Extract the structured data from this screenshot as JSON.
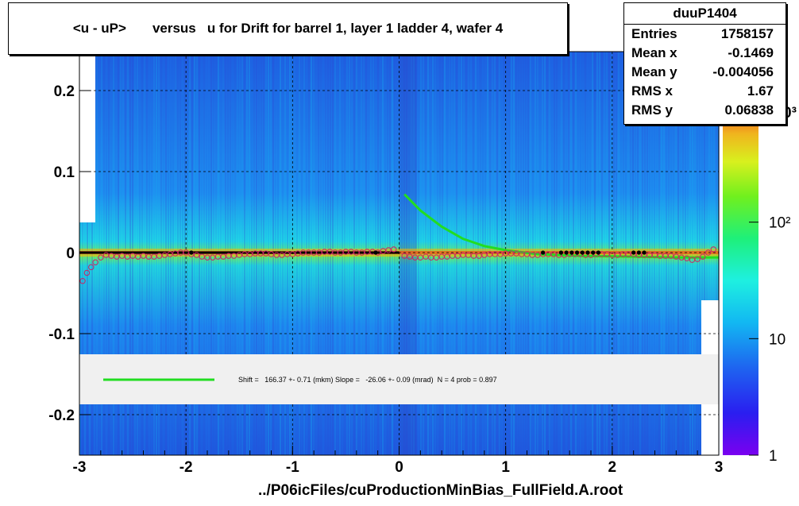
{
  "title": "<u - uP>       versus   u for Drift for barrel 1, layer 1 ladder 4, wafer 4",
  "stats": {
    "name": "duuP1404",
    "rows": [
      {
        "key": "Entries",
        "value": "1758157"
      },
      {
        "key": "Mean x",
        "value": "-0.1469"
      },
      {
        "key": "Mean y",
        "value": "-0.004056"
      },
      {
        "key": "RMS x",
        "value": "1.67"
      },
      {
        "key": "RMS y",
        "value": "0.06838"
      }
    ]
  },
  "fit_legend": "Shift =   166.37 +- 0.71 (mkm) Slope =   -26.06 +- 0.09 (mrad)  N = 4 prob = 0.897",
  "colors": {
    "fit_line": "#22dd22",
    "profile_marker": "#cc2266",
    "mean_line": "#000000"
  },
  "chart_data": {
    "type": "heatmap",
    "xlabel": "../P06icFiles/cuProductionMinBias_FullField.A.root",
    "ylabel": "",
    "xlim": [
      -3,
      3
    ],
    "ylim": [
      -0.25,
      0.25
    ],
    "x_ticks": [
      {
        "value": -3,
        "label": "-3"
      },
      {
        "value": -2,
        "label": "-2"
      },
      {
        "value": -1,
        "label": "-1"
      },
      {
        "value": 0,
        "label": "0"
      },
      {
        "value": 1,
        "label": "1"
      },
      {
        "value": 2,
        "label": "2"
      },
      {
        "value": 3,
        "label": "3"
      }
    ],
    "y_ticks": [
      {
        "value": 0.2,
        "label": "0.2"
      },
      {
        "value": 0.1,
        "label": "0.1"
      },
      {
        "value": 0,
        "label": "0"
      },
      {
        "value": -0.1,
        "label": "-0.1"
      },
      {
        "value": -0.2,
        "label": "-0.2"
      }
    ],
    "z_scale": "log",
    "z_ticks": [
      {
        "value": 1,
        "label": "1"
      },
      {
        "value": 10,
        "label": "10"
      },
      {
        "value": 100,
        "label": "10²"
      }
    ],
    "z_range": [
      1,
      1000
    ],
    "z_top_label_fragment": "0³",
    "grid": true,
    "fit_curve": [
      [
        0.05,
        0.072
      ],
      [
        0.2,
        0.052
      ],
      [
        0.4,
        0.032
      ],
      [
        0.6,
        0.017
      ],
      [
        0.8,
        0.008
      ],
      [
        1.0,
        0.003
      ],
      [
        1.3,
        -0.002
      ],
      [
        1.7,
        -0.004
      ],
      [
        2.2,
        -0.005
      ],
      [
        2.6,
        -0.006
      ],
      [
        3.0,
        -0.006
      ]
    ],
    "mean_line": [
      [
        -3,
        0.0
      ],
      [
        0,
        0.0
      ]
    ],
    "profile": [
      [
        -2.97,
        -0.035
      ],
      [
        -2.93,
        -0.025
      ],
      [
        -2.89,
        -0.018
      ],
      [
        -2.85,
        -0.012
      ],
      [
        -2.8,
        -0.006
      ],
      [
        -2.75,
        -0.003
      ],
      [
        -2.7,
        -0.004
      ],
      [
        -2.65,
        -0.005
      ],
      [
        -2.6,
        -0.004
      ],
      [
        -2.55,
        -0.005
      ],
      [
        -2.5,
        -0.004
      ],
      [
        -2.45,
        -0.005
      ],
      [
        -2.4,
        -0.004
      ],
      [
        -2.35,
        -0.005
      ],
      [
        -2.3,
        -0.005
      ],
      [
        -2.25,
        -0.004
      ],
      [
        -2.2,
        -0.003
      ],
      [
        -2.15,
        -0.002
      ],
      [
        -2.1,
        -0.001
      ],
      [
        -2.05,
        0.0
      ],
      [
        -2.0,
        0.0
      ],
      [
        -1.95,
        -0.002
      ],
      [
        -1.9,
        -0.003
      ],
      [
        -1.85,
        -0.005
      ],
      [
        -1.8,
        -0.006
      ],
      [
        -1.75,
        -0.006
      ],
      [
        -1.7,
        -0.005
      ],
      [
        -1.65,
        -0.005
      ],
      [
        -1.6,
        -0.004
      ],
      [
        -1.55,
        -0.004
      ],
      [
        -1.5,
        -0.003
      ],
      [
        -1.45,
        -0.002
      ],
      [
        -1.4,
        -0.002
      ],
      [
        -1.35,
        -0.001
      ],
      [
        -1.3,
        -0.001
      ],
      [
        -1.25,
        -0.001
      ],
      [
        -1.2,
        -0.002
      ],
      [
        -1.15,
        -0.003
      ],
      [
        -1.1,
        -0.003
      ],
      [
        -1.05,
        -0.002
      ],
      [
        -1.0,
        -0.002
      ],
      [
        -0.95,
        -0.001
      ],
      [
        -0.9,
        0.0
      ],
      [
        -0.85,
        0.0
      ],
      [
        -0.8,
        0.0
      ],
      [
        -0.75,
        0.0
      ],
      [
        -0.7,
        0.001
      ],
      [
        -0.65,
        0.001
      ],
      [
        -0.6,
        0.0
      ],
      [
        -0.55,
        0.0
      ],
      [
        -0.5,
        0.001
      ],
      [
        -0.45,
        0.001
      ],
      [
        -0.4,
        0.0
      ],
      [
        -0.35,
        0.0
      ],
      [
        -0.3,
        0.001
      ],
      [
        -0.25,
        0.001
      ],
      [
        -0.2,
        0.0
      ],
      [
        -0.15,
        0.002
      ],
      [
        -0.1,
        0.003
      ],
      [
        -0.05,
        0.004
      ],
      [
        0.05,
        -0.004
      ],
      [
        0.1,
        -0.005
      ],
      [
        0.15,
        -0.006
      ],
      [
        0.2,
        -0.006
      ],
      [
        0.25,
        -0.005
      ],
      [
        0.3,
        -0.006
      ],
      [
        0.35,
        -0.006
      ],
      [
        0.4,
        -0.005
      ],
      [
        0.45,
        -0.005
      ],
      [
        0.5,
        -0.004
      ],
      [
        0.55,
        -0.004
      ],
      [
        0.6,
        -0.003
      ],
      [
        0.65,
        -0.003
      ],
      [
        0.7,
        -0.004
      ],
      [
        0.75,
        -0.004
      ],
      [
        0.8,
        -0.003
      ],
      [
        0.85,
        -0.002
      ],
      [
        0.9,
        -0.002
      ],
      [
        0.95,
        -0.002
      ],
      [
        1.0,
        -0.001
      ],
      [
        1.05,
        -0.001
      ],
      [
        1.1,
        -0.001
      ],
      [
        1.15,
        -0.002
      ],
      [
        1.2,
        -0.002
      ],
      [
        1.25,
        -0.003
      ],
      [
        1.3,
        -0.003
      ],
      [
        1.35,
        -0.002
      ],
      [
        1.4,
        -0.002
      ],
      [
        1.45,
        -0.002
      ],
      [
        1.5,
        -0.003
      ],
      [
        1.55,
        -0.003
      ],
      [
        1.6,
        -0.002
      ],
      [
        1.65,
        -0.002
      ],
      [
        1.7,
        -0.002
      ],
      [
        1.75,
        -0.003
      ],
      [
        1.8,
        -0.003
      ],
      [
        1.85,
        -0.002
      ],
      [
        1.9,
        -0.002
      ],
      [
        1.95,
        -0.002
      ],
      [
        2.0,
        -0.003
      ],
      [
        2.05,
        -0.003
      ],
      [
        2.1,
        -0.002
      ],
      [
        2.15,
        -0.002
      ],
      [
        2.2,
        -0.002
      ],
      [
        2.25,
        -0.003
      ],
      [
        2.3,
        -0.003
      ],
      [
        2.35,
        -0.003
      ],
      [
        2.4,
        -0.003
      ],
      [
        2.45,
        -0.004
      ],
      [
        2.5,
        -0.004
      ],
      [
        2.55,
        -0.004
      ],
      [
        2.6,
        -0.005
      ],
      [
        2.65,
        -0.006
      ],
      [
        2.7,
        -0.007
      ],
      [
        2.75,
        -0.009
      ],
      [
        2.8,
        -0.008
      ],
      [
        2.85,
        -0.005
      ],
      [
        2.9,
        0.0
      ],
      [
        2.95,
        0.004
      ]
    ],
    "black_points": [
      [
        -1.95,
        0.0
      ],
      [
        -0.22,
        0.0
      ],
      [
        1.35,
        0.0
      ],
      [
        1.52,
        0.0
      ],
      [
        1.57,
        0.0
      ],
      [
        1.62,
        0.0
      ],
      [
        1.67,
        0.0
      ],
      [
        1.72,
        0.0
      ],
      [
        1.77,
        0.0
      ],
      [
        1.82,
        0.0
      ],
      [
        1.87,
        0.0
      ],
      [
        2.2,
        0.0
      ],
      [
        2.25,
        0.0
      ],
      [
        2.3,
        0.0
      ]
    ]
  }
}
